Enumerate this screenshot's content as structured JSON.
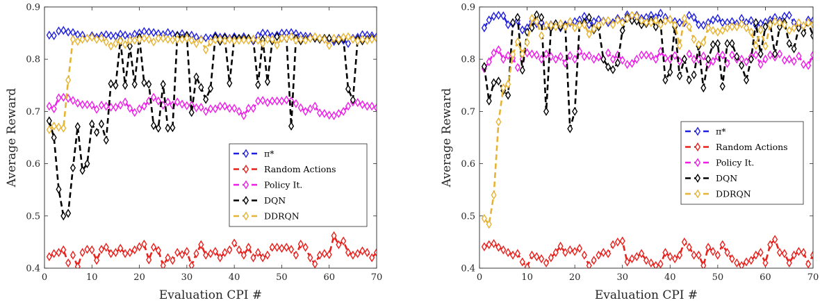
{
  "figure": {
    "panels": [
      "left",
      "right"
    ]
  },
  "series_styles": [
    {
      "name": "π*",
      "color": "#1f1fe0"
    },
    {
      "name": "Random Actions",
      "color": "#e8201c"
    },
    {
      "name": "Policy It.",
      "color": "#ee1ee8"
    },
    {
      "name": "DQN",
      "color": "#000000"
    },
    {
      "name": "DDRQN",
      "color": "#e6b434"
    }
  ],
  "chart_data": [
    {
      "type": "line",
      "xlabel": "Evaluation CPI #",
      "ylabel": "Average Reward",
      "xlim": [
        0,
        70
      ],
      "ylim": [
        0.4,
        0.9
      ],
      "xticks": [
        "0",
        "10",
        "20",
        "30",
        "40",
        "50",
        "60",
        "70"
      ],
      "yticks": [
        "0.4",
        "0.5",
        "0.6",
        "0.7",
        "0.8",
        "0.9"
      ],
      "legend_position": "center-right",
      "x": [
        1,
        2,
        3,
        4,
        5,
        6,
        7,
        8,
        9,
        10,
        11,
        12,
        13,
        14,
        15,
        16,
        17,
        18,
        19,
        20,
        21,
        22,
        23,
        24,
        25,
        26,
        27,
        28,
        29,
        30,
        31,
        32,
        33,
        34,
        35,
        36,
        37,
        38,
        39,
        40,
        41,
        42,
        43,
        44,
        45,
        46,
        47,
        48,
        49,
        50,
        51,
        52,
        53,
        54,
        55,
        56,
        57,
        58,
        59,
        60,
        61,
        62,
        63,
        64,
        65,
        66,
        67,
        68,
        69,
        70
      ],
      "series": [
        {
          "name": "π*",
          "values": [
            0.846,
            0.845,
            0.854,
            0.855,
            0.852,
            0.851,
            0.847,
            0.846,
            0.84,
            0.845,
            0.842,
            0.845,
            0.847,
            0.845,
            0.844,
            0.848,
            0.846,
            0.843,
            0.848,
            0.85,
            0.853,
            0.852,
            0.851,
            0.849,
            0.847,
            0.851,
            0.848,
            0.846,
            0.849,
            0.846,
            0.846,
            0.842,
            0.838,
            0.841,
            0.84,
            0.845,
            0.842,
            0.843,
            0.84,
            0.843,
            0.84,
            0.843,
            0.838,
            0.835,
            0.845,
            0.85,
            0.849,
            0.844,
            0.846,
            0.85,
            0.85,
            0.851,
            0.849,
            0.845,
            0.844,
            0.843,
            0.84,
            0.84,
            0.838,
            0.838,
            0.834,
            0.84,
            0.836,
            0.83,
            0.84,
            0.842,
            0.847,
            0.846,
            0.845,
            0.843
          ]
        },
        {
          "name": "Random Actions",
          "values": [
            0.422,
            0.428,
            0.43,
            0.435,
            0.41,
            0.425,
            0.403,
            0.43,
            0.436,
            0.435,
            0.415,
            0.436,
            0.44,
            0.428,
            0.43,
            0.438,
            0.428,
            0.43,
            0.435,
            0.441,
            0.446,
            0.416,
            0.44,
            0.434,
            0.405,
            0.42,
            0.415,
            0.43,
            0.426,
            0.432,
            0.405,
            0.428,
            0.445,
            0.425,
            0.428,
            0.432,
            0.42,
            0.43,
            0.435,
            0.448,
            0.435,
            0.425,
            0.44,
            0.42,
            0.43,
            0.42,
            0.425,
            0.44,
            0.44,
            0.438,
            0.44,
            0.436,
            0.425,
            0.446,
            0.44,
            0.42,
            0.408,
            0.425,
            0.428,
            0.426,
            0.462,
            0.445,
            0.452,
            0.43,
            0.425,
            0.428,
            0.433,
            0.43,
            0.42,
            0.43
          ]
        },
        {
          "name": "Policy It.",
          "values": [
            0.71,
            0.705,
            0.726,
            0.727,
            0.725,
            0.721,
            0.716,
            0.713,
            0.713,
            0.712,
            0.704,
            0.712,
            0.71,
            0.708,
            0.708,
            0.712,
            0.718,
            0.706,
            0.698,
            0.705,
            0.71,
            0.72,
            0.727,
            0.72,
            0.712,
            0.718,
            0.712,
            0.718,
            0.714,
            0.711,
            0.712,
            0.707,
            0.708,
            0.7,
            0.705,
            0.705,
            0.71,
            0.71,
            0.706,
            0.706,
            0.7,
            0.692,
            0.706,
            0.706,
            0.72,
            0.721,
            0.717,
            0.72,
            0.72,
            0.72,
            0.722,
            0.72,
            0.715,
            0.707,
            0.7,
            0.705,
            0.71,
            0.697,
            0.696,
            0.693,
            0.692,
            0.696,
            0.7,
            0.71,
            0.718,
            0.717,
            0.713,
            0.71,
            0.71,
            0.707
          ]
        },
        {
          "name": "DQN",
          "values": [
            0.682,
            0.65,
            0.551,
            0.5,
            0.505,
            0.592,
            0.671,
            0.587,
            0.6,
            0.676,
            0.66,
            0.676,
            0.645,
            0.753,
            0.75,
            0.836,
            0.75,
            0.825,
            0.752,
            0.842,
            0.755,
            0.752,
            0.673,
            0.668,
            0.752,
            0.668,
            0.669,
            0.845,
            0.84,
            0.845,
            0.698,
            0.766,
            0.746,
            0.723,
            0.744,
            0.842,
            0.834,
            0.841,
            0.754,
            0.84,
            0.84,
            0.839,
            0.84,
            0.838,
            0.751,
            0.837,
            0.757,
            0.835,
            0.843,
            0.84,
            0.84,
            0.672,
            0.84,
            0.835,
            0.838,
            0.84,
            0.84,
            0.838,
            0.84,
            0.84,
            0.838,
            0.835,
            0.84,
            0.743,
            0.722,
            0.838,
            0.835,
            0.838,
            0.84,
            0.84
          ]
        },
        {
          "name": "DDRQN",
          "values": [
            0.665,
            0.672,
            0.67,
            0.668,
            0.76,
            0.838,
            0.834,
            0.838,
            0.84,
            0.842,
            0.838,
            0.84,
            0.833,
            0.825,
            0.83,
            0.835,
            0.828,
            0.836,
            0.836,
            0.838,
            0.84,
            0.838,
            0.833,
            0.84,
            0.84,
            0.838,
            0.837,
            0.838,
            0.838,
            0.84,
            0.836,
            0.83,
            0.837,
            0.818,
            0.833,
            0.837,
            0.838,
            0.835,
            0.838,
            0.835,
            0.836,
            0.837,
            0.836,
            0.838,
            0.836,
            0.83,
            0.838,
            0.838,
            0.827,
            0.84,
            0.84,
            0.843,
            0.836,
            0.838,
            0.836,
            0.84,
            0.843,
            0.84,
            0.838,
            0.826,
            0.84,
            0.838,
            0.842,
            0.843,
            0.838,
            0.835,
            0.838,
            0.836,
            0.838,
            0.84
          ]
        }
      ]
    },
    {
      "type": "line",
      "xlabel": "Evaluation CPI #",
      "ylabel": "Average Reward",
      "xlim": [
        0,
        70
      ],
      "ylim": [
        0.4,
        0.9
      ],
      "xticks": [
        "0",
        "10",
        "20",
        "30",
        "40",
        "50",
        "60",
        "70"
      ],
      "yticks": [
        "0.4",
        "0.5",
        "0.6",
        "0.7",
        "0.8",
        "0.9"
      ],
      "legend_position": "center-right",
      "x": [
        1,
        2,
        3,
        4,
        5,
        6,
        7,
        8,
        9,
        10,
        11,
        12,
        13,
        14,
        15,
        16,
        17,
        18,
        19,
        20,
        21,
        22,
        23,
        24,
        25,
        26,
        27,
        28,
        29,
        30,
        31,
        32,
        33,
        34,
        35,
        36,
        37,
        38,
        39,
        40,
        41,
        42,
        43,
        44,
        45,
        46,
        47,
        48,
        49,
        50,
        51,
        52,
        53,
        54,
        55,
        56,
        57,
        58,
        59,
        60,
        61,
        62,
        63,
        64,
        65,
        66,
        67,
        68,
        69,
        70
      ],
      "series": [
        {
          "name": "π*",
          "values": [
            0.86,
            0.875,
            0.882,
            0.884,
            0.883,
            0.866,
            0.868,
            0.874,
            0.856,
            0.86,
            0.872,
            0.868,
            0.87,
            0.864,
            0.866,
            0.866,
            0.86,
            0.866,
            0.87,
            0.872,
            0.875,
            0.882,
            0.866,
            0.872,
            0.876,
            0.873,
            0.87,
            0.87,
            0.878,
            0.872,
            0.885,
            0.88,
            0.884,
            0.878,
            0.88,
            0.884,
            0.88,
            0.888,
            0.88,
            0.876,
            0.872,
            0.87,
            0.87,
            0.884,
            0.88,
            0.866,
            0.865,
            0.87,
            0.875,
            0.878,
            0.87,
            0.87,
            0.872,
            0.868,
            0.878,
            0.87,
            0.874,
            0.865,
            0.868,
            0.871,
            0.875,
            0.88,
            0.874,
            0.882,
            0.884,
            0.87,
            0.865,
            0.864,
            0.875,
            0.874
          ]
        },
        {
          "name": "Random Actions",
          "values": [
            0.441,
            0.445,
            0.447,
            0.44,
            0.435,
            0.43,
            0.425,
            0.428,
            0.412,
            0.402,
            0.425,
            0.422,
            0.418,
            0.41,
            0.42,
            0.43,
            0.442,
            0.43,
            0.435,
            0.432,
            0.438,
            0.425,
            0.405,
            0.415,
            0.425,
            0.43,
            0.428,
            0.445,
            0.45,
            0.452,
            0.412,
            0.418,
            0.422,
            0.428,
            0.415,
            0.41,
            0.405,
            0.408,
            0.43,
            0.422,
            0.418,
            0.425,
            0.45,
            0.44,
            0.425,
            0.425,
            0.405,
            0.44,
            0.432,
            0.425,
            0.445,
            0.43,
            0.418,
            0.41,
            0.405,
            0.412,
            0.415,
            0.425,
            0.43,
            0.41,
            0.445,
            0.455,
            0.43,
            0.428,
            0.41,
            0.425,
            0.432,
            0.43,
            0.408,
            0.425
          ]
        },
        {
          "name": "Policy It.",
          "values": [
            0.782,
            0.795,
            0.812,
            0.818,
            0.8,
            0.807,
            0.802,
            0.784,
            0.8,
            0.812,
            0.81,
            0.808,
            0.8,
            0.81,
            0.805,
            0.8,
            0.805,
            0.792,
            0.807,
            0.8,
            0.815,
            0.805,
            0.807,
            0.8,
            0.804,
            0.8,
            0.812,
            0.8,
            0.808,
            0.798,
            0.79,
            0.792,
            0.8,
            0.808,
            0.808,
            0.806,
            0.8,
            0.815,
            0.802,
            0.8,
            0.807,
            0.796,
            0.8,
            0.81,
            0.8,
            0.8,
            0.806,
            0.79,
            0.796,
            0.805,
            0.808,
            0.792,
            0.808,
            0.8,
            0.8,
            0.795,
            0.805,
            0.808,
            0.79,
            0.8,
            0.808,
            0.804,
            0.81,
            0.798,
            0.8,
            0.796,
            0.806,
            0.79,
            0.788,
            0.808
          ]
        },
        {
          "name": "DQN",
          "values": [
            0.786,
            0.72,
            0.755,
            0.758,
            0.74,
            0.731,
            0.87,
            0.88,
            0.779,
            0.852,
            0.86,
            0.885,
            0.88,
            0.7,
            0.86,
            0.868,
            0.862,
            0.864,
            0.667,
            0.7,
            0.866,
            0.87,
            0.88,
            0.856,
            0.862,
            0.8,
            0.785,
            0.78,
            0.793,
            0.855,
            0.88,
            0.874,
            0.873,
            0.866,
            0.868,
            0.875,
            0.862,
            0.87,
            0.76,
            0.775,
            0.862,
            0.768,
            0.8,
            0.76,
            0.77,
            0.825,
            0.745,
            0.8,
            0.828,
            0.83,
            0.748,
            0.83,
            0.83,
            0.805,
            0.788,
            0.76,
            0.8,
            0.87,
            0.81,
            0.862,
            0.868,
            0.81,
            0.862,
            0.87,
            0.83,
            0.82,
            0.86,
            0.85,
            0.87,
            0.845
          ]
        },
        {
          "name": "DDRQN",
          "values": [
            0.495,
            0.484,
            0.54,
            0.68,
            0.745,
            0.752,
            0.809,
            0.833,
            0.81,
            0.832,
            0.878,
            0.872,
            0.845,
            0.865,
            0.865,
            0.862,
            0.868,
            0.862,
            0.872,
            0.86,
            0.865,
            0.866,
            0.848,
            0.858,
            0.865,
            0.872,
            0.874,
            0.866,
            0.875,
            0.87,
            0.878,
            0.884,
            0.882,
            0.874,
            0.87,
            0.87,
            0.874,
            0.866,
            0.873,
            0.876,
            0.865,
            0.826,
            0.878,
            0.862,
            0.838,
            0.828,
            0.832,
            0.86,
            0.855,
            0.852,
            0.855,
            0.86,
            0.862,
            0.862,
            0.867,
            0.86,
            0.852,
            0.826,
            0.856,
            0.825,
            0.866,
            0.872,
            0.87,
            0.866,
            0.855,
            0.86,
            0.87,
            0.864,
            0.87,
            0.866
          ]
        }
      ]
    }
  ]
}
